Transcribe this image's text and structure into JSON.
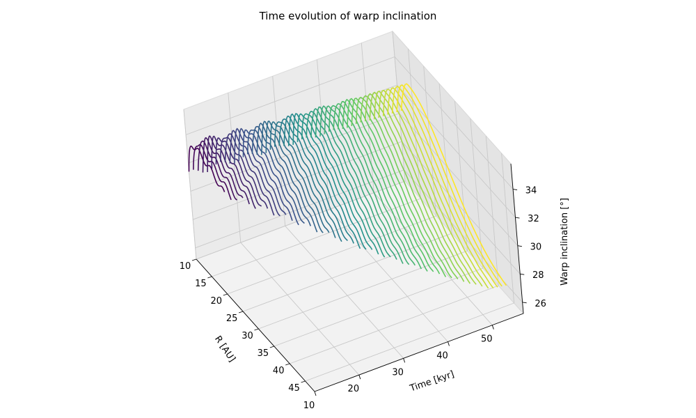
{
  "chart_data": {
    "type": "line3d",
    "title": "Time evolution of warp inclination",
    "xlabel": "R [AU]",
    "ylabel": "Time [kyr]",
    "zlabel": "Warp inclination [°]",
    "xlim": [
      10,
      48
    ],
    "ylim": [
      10,
      57
    ],
    "zlim": [
      25.2,
      35.8
    ],
    "xticks": [
      10,
      15,
      20,
      25,
      30,
      35,
      40,
      45
    ],
    "yticks": [
      10,
      20,
      30,
      40,
      50
    ],
    "zticks": [
      26,
      28,
      30,
      32,
      34
    ],
    "grid": true,
    "colormap": "viridis",
    "colormap_stops": [
      "#440154",
      "#3b528b",
      "#21918c",
      "#5ec962",
      "#fde725"
    ],
    "series_description": "one inclination profile vs R per output time",
    "time_range": [
      10,
      55
    ],
    "r_range": [
      10,
      46
    ],
    "profile_model": {
      "inner_plateau_early": 33.8,
      "outer_value_early": 30.4,
      "outer_value_late": 26.6,
      "peak_late": 34.0,
      "peak_radius_early": 12,
      "peak_radius_late": 17
    }
  }
}
